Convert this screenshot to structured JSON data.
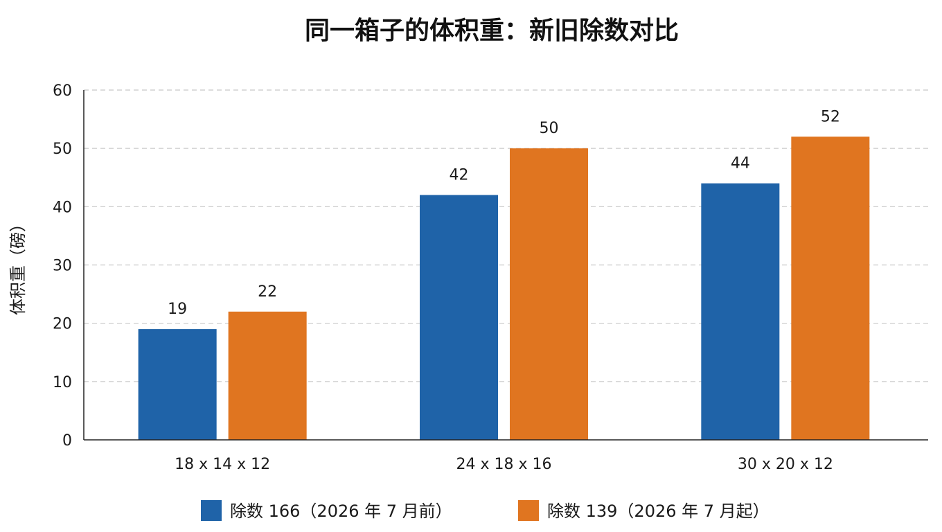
{
  "chart_data": {
    "type": "bar",
    "title": "同一箱子的体积重：新旧除数对比",
    "xlabel": "",
    "ylabel": "体积重（磅）",
    "ylim": [
      0,
      60
    ],
    "yticks": [
      0,
      10,
      20,
      30,
      40,
      50,
      60
    ],
    "categories": [
      "18 x 14 x 12",
      "24 x 18 x 16",
      "30 x 20 x 12"
    ],
    "series": [
      {
        "name": "除数 166（2026 年 7 月前）",
        "color": "#1f63a8",
        "values": [
          19,
          42,
          44
        ]
      },
      {
        "name": "除数 139（2026 年 7 月起）",
        "color": "#e07520",
        "values": [
          22,
          50,
          52
        ]
      }
    ],
    "grid": true,
    "legend_position": "bottom"
  }
}
